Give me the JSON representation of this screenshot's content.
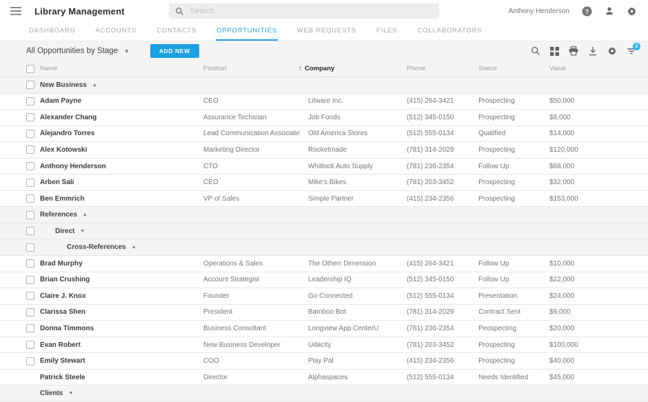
{
  "header": {
    "title": "Library Management",
    "search": {
      "placeholder": "Search"
    },
    "user_name": "Anthony Henderson",
    "icons": [
      "menu-icon",
      "help-icon",
      "account-icon",
      "settings-icon"
    ]
  },
  "tabs": [
    {
      "label": "DASHBOARD",
      "active": false
    },
    {
      "label": "ACCOUNTS",
      "active": false
    },
    {
      "label": "CONTACTS",
      "active": false
    },
    {
      "label": "OPPORTUNITIES",
      "active": true
    },
    {
      "label": "WEB REQUESTS",
      "active": false
    },
    {
      "label": "FILES",
      "active": false
    },
    {
      "label": "COLLABORATORS",
      "active": false
    }
  ],
  "toolbar": {
    "view_selector_label": "All Opportunities by Stage",
    "add_new_label": "ADD NEW",
    "icons": [
      "search-icon",
      "grid-view-icon",
      "print-icon",
      "download-icon",
      "settings-icon",
      "filter-icon"
    ],
    "filter_badge_count": "2"
  },
  "colors": {
    "accent_blue": "#1CA1E2",
    "badge_blue": "#29B6F6"
  },
  "table": {
    "columns": [
      {
        "key": "name",
        "label": "Name",
        "sorted": false
      },
      {
        "key": "position",
        "label": "Position",
        "sorted": false
      },
      {
        "key": "company",
        "label": "Company",
        "sorted": true,
        "sort_direction": "asc"
      },
      {
        "key": "phone",
        "label": "Phone",
        "sorted": false
      },
      {
        "key": "status",
        "label": "Status",
        "sorted": false
      },
      {
        "key": "value",
        "label": "Value",
        "sorted": false
      }
    ],
    "rows": [
      {
        "type": "group",
        "label": "New Business",
        "level": 1,
        "caret": "up",
        "checkbox": true
      },
      {
        "type": "data",
        "checkbox": true,
        "name": "Adam Payne",
        "position": "CEO",
        "company": "Litware Inc.",
        "phone": "(415) 264-3421",
        "status": "Prospecting",
        "value": "$50,000"
      },
      {
        "type": "data",
        "checkbox": true,
        "name": "Alexander Chang",
        "position": "Assurance Techician",
        "company": "Job Foods",
        "phone": "(512) 345-0150",
        "status": "Prospecting",
        "value": "$8,000"
      },
      {
        "type": "data",
        "checkbox": true,
        "name": "Alejandro Torres",
        "position": "Lead Communication Associate",
        "company": "Old America Stores",
        "phone": "(512) 555-0134",
        "status": "Qualified",
        "value": "$14,000"
      },
      {
        "type": "data",
        "checkbox": true,
        "name": "Alex Kotowski",
        "position": "Marketing Director",
        "company": "Rocketmade",
        "phone": "(781) 314-2029",
        "status": "Prospecting",
        "value": "$120,000"
      },
      {
        "type": "data",
        "checkbox": true,
        "name": "Anthony Henderson",
        "position": "CTO",
        "company": "Whitlock Auto Supply",
        "phone": "(781) 236-2354",
        "status": "Follow Up",
        "value": "$68,000"
      },
      {
        "type": "data",
        "checkbox": true,
        "name": "Arben Sali",
        "position": "CEO",
        "company": "Mike's Bikes",
        "phone": "(781) 203-3452",
        "status": "Prospecting",
        "value": "$32,000"
      },
      {
        "type": "data",
        "checkbox": true,
        "name": "Ben Emmrich",
        "position": "VP of Sales",
        "company": "Simple Partner",
        "phone": "(415) 234-2356",
        "status": "Prospecting",
        "value": "$153,000"
      },
      {
        "type": "group",
        "label": "References",
        "level": 1,
        "caret": "up",
        "checkbox": true
      },
      {
        "type": "group",
        "label": "Direct",
        "level": 2,
        "caret": "down",
        "checkbox": true
      },
      {
        "type": "group",
        "label": "Cross-References",
        "level": 3,
        "caret": "up",
        "checkbox": true
      },
      {
        "type": "data",
        "checkbox": true,
        "name": "Brad Murphy",
        "position": "Operations & Sales",
        "company": "The Otherr Dimension",
        "phone": "(415) 264-3421",
        "status": "Follow Up",
        "value": "$10,000"
      },
      {
        "type": "data",
        "checkbox": true,
        "name": "Brian Crushing",
        "position": "Account Strategist",
        "company": "Leadership IQ",
        "phone": "(512) 345-0150",
        "status": "Follow Up",
        "value": "$22,000"
      },
      {
        "type": "data",
        "checkbox": true,
        "name": "Claire J. Knox",
        "position": "Founder",
        "company": "Go Connected",
        "phone": "(512) 555-0134",
        "status": "Presentation",
        "value": "$24,000"
      },
      {
        "type": "data",
        "checkbox": true,
        "name": "Clarissa Shen",
        "position": "President",
        "company": "Bamboo Bot",
        "phone": "(781) 314-2029",
        "status": "Contract Sent",
        "value": "$9,000"
      },
      {
        "type": "data",
        "checkbox": true,
        "name": "Donna Timmons",
        "position": "Business Consultant",
        "company": "Longview App CenterU",
        "phone": "(781) 236-2354",
        "status": "Peospecting",
        "value": "$20,000"
      },
      {
        "type": "data",
        "checkbox": true,
        "name": "Evan Robert",
        "position": "New Business Developer",
        "company": "Udacity",
        "phone": "(781) 203-3452",
        "status": "Prospecting",
        "value": "$100,000"
      },
      {
        "type": "data",
        "checkbox": true,
        "name": "Emily Stewart",
        "position": "COO",
        "company": "Play Pal",
        "phone": "(415) 234-2356",
        "status": "Prospecting",
        "value": "$40,000"
      },
      {
        "type": "data",
        "checkbox": false,
        "name": "Patrick Steele",
        "position": "Director",
        "company": "Alphaspaces",
        "phone": "(512) 555-0134",
        "status": "Needs Identified",
        "value": "$45,000"
      },
      {
        "type": "group",
        "label": "Clients",
        "level": 1,
        "caret": "down",
        "checkbox": false
      }
    ]
  }
}
